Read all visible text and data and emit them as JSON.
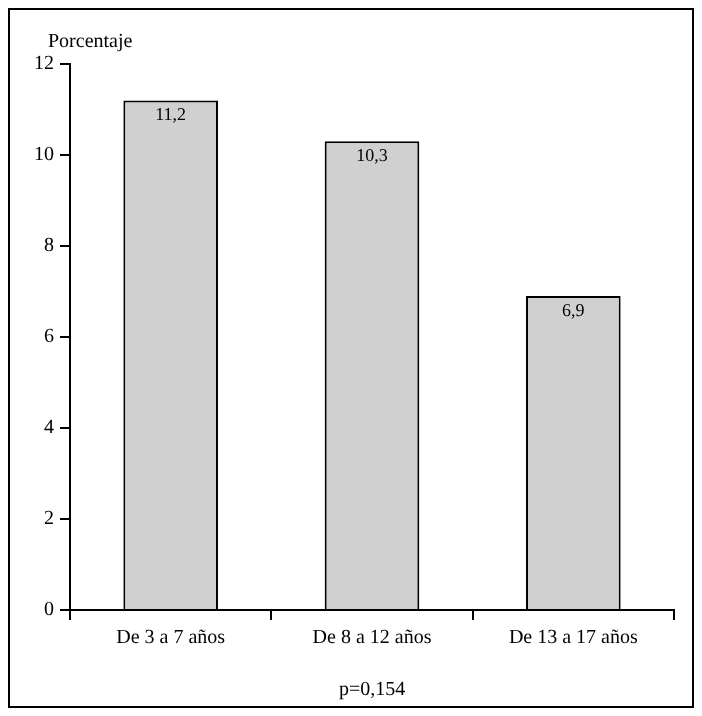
{
  "chart_data": {
    "type": "bar",
    "ylabel": "Porcentaje",
    "categories": [
      "De 3 a 7 años",
      "De 8 a 12 años",
      "De 13 a 17 años"
    ],
    "values": [
      11.2,
      10.3,
      6.9
    ],
    "value_labels": [
      "11,2",
      "10,3",
      "6,9"
    ],
    "color": "#d0d0d0",
    "ylim": [
      0,
      12
    ],
    "yticks": [
      0,
      2,
      4,
      6,
      8,
      10,
      12
    ],
    "grid": false,
    "legend": false,
    "annotations": [
      "p=0,154"
    ]
  }
}
